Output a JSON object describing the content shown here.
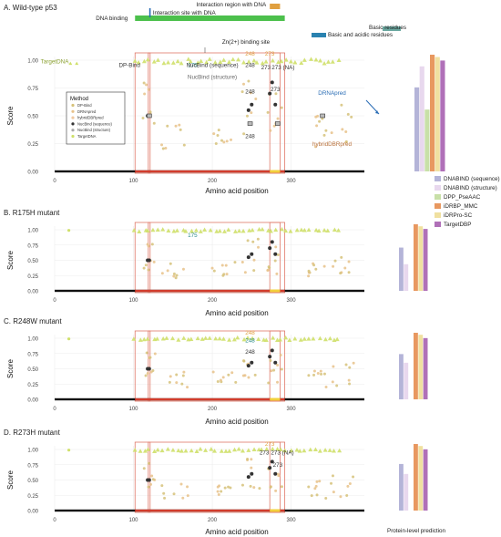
{
  "colors": {
    "dpbind": "#d6c27a",
    "drnapred": "#e8c28a",
    "hybrid": "#f0c8a0",
    "nucbind_seq": "#333333",
    "nucbind_struct": "#aaaaaa",
    "targetdna": "#cfe06a",
    "region_box": "#e07868",
    "dna_binding_bar": "#4cc04c",
    "interaction_bar": "#2a6db5",
    "basic_bar": "#6aa8a0",
    "basic_acidic_bar": "#2a82b0",
    "axis_line": "#111111",
    "dnabind_seq": "#b4b4d8",
    "dnabind_struct": "#e8d8ee",
    "idpp": "#c8e0a8",
    "idrbp": "#e89860",
    "idrpro": "#f0e0a0",
    "targetdbp": "#b070b8"
  },
  "chart_data": [
    {
      "type": "scatter",
      "panel": "A",
      "title": "A. Wild-type p53",
      "xlabel": "Amino acid position",
      "ylabel": "Score",
      "xlim": [
        0,
        393
      ],
      "ylim": [
        0,
        1
      ],
      "x_ticks": [
        "0",
        "100",
        "200",
        "300"
      ],
      "y_ticks": [
        "0.00",
        "0.25",
        "0.50",
        "0.75",
        "1.00"
      ],
      "grid": true,
      "legend": {
        "title": "Method",
        "entries": [
          "DP-Bind",
          "DRNApred",
          "hybridDBRpred",
          "NucBind (sequence)",
          "NucBind (structure)",
          "TargetDNA"
        ]
      },
      "regions": [
        {
          "label": "DNA binding",
          "start": 102,
          "end": 292
        },
        {
          "label": "Interaction site with DNA",
          "start": 120,
          "end": 120
        },
        {
          "label": "Interaction region with DNA",
          "start": 273,
          "end": 286
        },
        {
          "label": "Zn(2+) binding site",
          "start": 176,
          "end": 242
        },
        {
          "label": "Basic residues",
          "start": 363,
          "end": 382
        },
        {
          "label": "Basic and acidic residues",
          "start": 300,
          "end": 320
        }
      ],
      "annotations": [
        {
          "text": "TargetDNA",
          "x": 0,
          "y": 0.97
        },
        {
          "text": "DP-Bind",
          "x": 95,
          "y": 0.94
        },
        {
          "text": "175",
          "x": 175,
          "y": 0.94
        },
        {
          "text": "248",
          "x": 248,
          "y": 1.04
        },
        {
          "text": "273",
          "x": 273,
          "y": 1.04
        },
        {
          "text": "NucBind (sequence)",
          "x": 200,
          "y": 0.94
        },
        {
          "text": "248",
          "x": 248,
          "y": 0.94
        },
        {
          "text": "273",
          "x": 268,
          "y": 0.92
        },
        {
          "text": "273 (NA)",
          "x": 290,
          "y": 0.92
        },
        {
          "text": "NucBind (structure)",
          "x": 200,
          "y": 0.83
        },
        {
          "text": "248",
          "x": 248,
          "y": 0.7
        },
        {
          "text": "273",
          "x": 280,
          "y": 0.72
        },
        {
          "text": "248",
          "x": 248,
          "y": 0.3
        },
        {
          "text": "DRNApred",
          "x": 352,
          "y": 0.69
        },
        {
          "text": "hybridDBRpred",
          "x": 352,
          "y": 0.23
        }
      ],
      "protein_level": [
        {
          "name": "DNABIND (sequence)",
          "value": 0.72
        },
        {
          "name": "DNABIND (structure)",
          "value": 0.9
        },
        {
          "name": "DPP_PseAAC",
          "value": 0.53
        },
        {
          "name": "iDRBP_MMC",
          "value": 1.0
        },
        {
          "name": "iDRPro-SC",
          "value": 0.98
        },
        {
          "name": "TargetDBP",
          "value": 0.95
        }
      ]
    },
    {
      "type": "scatter",
      "panel": "B",
      "title": "B. R175H mutant",
      "xlabel": "Amino acid position",
      "ylabel": "Score",
      "xlim": [
        0,
        393
      ],
      "ylim": [
        0,
        1
      ],
      "x_ticks": [
        "0",
        "100",
        "200",
        "300"
      ],
      "y_ticks": [
        "0.00",
        "0.25",
        "0.50",
        "0.75",
        "1.00"
      ],
      "annotations": [
        {
          "text": "175",
          "x": 175,
          "y": 0.88
        }
      ],
      "protein_level": [
        {
          "name": "DNABIND (sequence)",
          "value": 0.65
        },
        {
          "name": "DNABIND (structure)",
          "value": 0.4
        },
        {
          "name": "DPP_PseAAC",
          "value": 0.0
        },
        {
          "name": "iDRBP_MMC",
          "value": 1.0
        },
        {
          "name": "iDRPro-SC",
          "value": 0.97
        },
        {
          "name": "TargetDBP",
          "value": 0.93
        }
      ]
    },
    {
      "type": "scatter",
      "panel": "C",
      "title": "C. R248W mutant",
      "xlabel": "Amino acid position",
      "ylabel": "Score",
      "xlim": [
        0,
        393
      ],
      "ylim": [
        0,
        1
      ],
      "x_ticks": [
        "0",
        "100",
        "200",
        "300"
      ],
      "y_ticks": [
        "0.00",
        "0.25",
        "0.50",
        "0.75",
        "1.00"
      ],
      "annotations": [
        {
          "text": "248",
          "x": 248,
          "y": 1.06
        },
        {
          "text": "248",
          "x": 248,
          "y": 0.93
        },
        {
          "text": "248",
          "x": 248,
          "y": 0.75
        }
      ],
      "protein_level": [
        {
          "name": "DNABIND (sequence)",
          "value": 0.68
        },
        {
          "name": "DNABIND (structure)",
          "value": 0.55
        },
        {
          "name": "DPP_PseAAC",
          "value": 0.0
        },
        {
          "name": "iDRBP_MMC",
          "value": 1.0
        },
        {
          "name": "iDRPro-SC",
          "value": 0.97
        },
        {
          "name": "TargetDBP",
          "value": 0.92
        }
      ]
    },
    {
      "type": "scatter",
      "panel": "D",
      "title": "D. R273H mutant",
      "xlabel": "Amino acid position",
      "ylabel": "Score",
      "xlim": [
        0,
        393
      ],
      "ylim": [
        0,
        1
      ],
      "x_ticks": [
        "0",
        "100",
        "200",
        "300"
      ],
      "y_ticks": [
        "0.00",
        "0.25",
        "0.50",
        "0.75",
        "1.00"
      ],
      "annotations": [
        {
          "text": "273",
          "x": 273,
          "y": 1.06
        },
        {
          "text": "273",
          "x": 266,
          "y": 0.92
        },
        {
          "text": "273 (NA)",
          "x": 289,
          "y": 0.92
        },
        {
          "text": "273",
          "x": 283,
          "y": 0.72
        }
      ],
      "protein_level": [
        {
          "name": "DNABIND (sequence)",
          "value": 0.7
        },
        {
          "name": "DNABIND (structure)",
          "value": 0.55
        },
        {
          "name": "DPP_PseAAC",
          "value": 0.0
        },
        {
          "name": "iDRBP_MMC",
          "value": 1.0
        },
        {
          "name": "iDRPro-SC",
          "value": 0.97
        },
        {
          "name": "TargetDBP",
          "value": 0.92
        }
      ]
    }
  ],
  "protein_level_legend": [
    "DNABIND (sequence)",
    "DNABIND (structure)",
    "DPP_PseAAC",
    "iDRBP_MMC",
    "iDRPro-SC",
    "TargetDBP"
  ],
  "protein_level_caption": "Protein-level prediction"
}
